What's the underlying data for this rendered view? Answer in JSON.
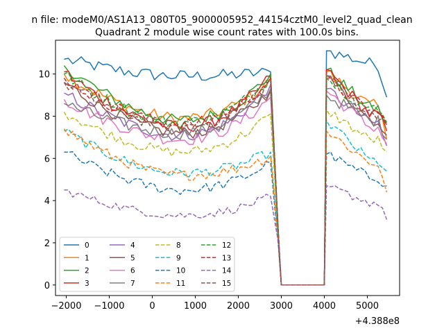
{
  "chart_data": {
    "type": "line",
    "suptitle": "n file: modeM0/AS1A13_080T05_9000005952_44154cztM0_level2_quad_clean",
    "title": "Quadrant 2 module wise count rates with 100.0s bins.",
    "xlabel": "",
    "ylabel": "",
    "x_offset_label": "+4.388e8",
    "xlim": [
      -2250,
      5750
    ],
    "ylim": [
      -0.5,
      11.6
    ],
    "x_ticks": [
      -2000,
      -1000,
      0,
      1000,
      2000,
      3000,
      4000,
      5000
    ],
    "x_tick_labels": [
      "−2000",
      "−1000",
      "0",
      "1000",
      "2000",
      "3000",
      "4000",
      "5000"
    ],
    "y_ticks": [
      0,
      2,
      4,
      6,
      8,
      10
    ],
    "y_tick_labels": [
      "0",
      "2",
      "4",
      "6",
      "8",
      "10"
    ],
    "grid": false,
    "legend_position": "lower-left",
    "legend_columns": 4,
    "x_seg1": {
      "start": -2050,
      "step": 100,
      "count": 49
    },
    "x_gap": [
      3000,
      4000
    ],
    "x_seg2": {
      "start": 4050,
      "step": 100,
      "count": 15
    },
    "series": [
      {
        "name": "0",
        "color": "#1f77b4",
        "dash": "solid",
        "base": 9.9,
        "amp": 0.3,
        "seg1_start": 10.7,
        "seg1_end": 10.1,
        "seg2_start": 11.1,
        "seg2_end": 8.9
      },
      {
        "name": "1",
        "color": "#ff7f0e",
        "dash": "solid",
        "base": 7.9,
        "amp": 0.3,
        "seg1_start": 10.0,
        "seg1_end": 9.7,
        "seg2_start": 10.1,
        "seg2_end": 6.9
      },
      {
        "name": "2",
        "color": "#2ca02c",
        "dash": "solid",
        "base": 7.8,
        "amp": 0.3,
        "seg1_start": 10.4,
        "seg1_end": 10.0,
        "seg2_start": 10.2,
        "seg2_end": 7.6
      },
      {
        "name": "3",
        "color": "#d62728",
        "dash": "solid",
        "base": 7.5,
        "amp": 0.3,
        "seg1_start": 10.1,
        "seg1_end": 9.9,
        "seg2_start": 10.2,
        "seg2_end": 7.3
      },
      {
        "name": "4",
        "color": "#9467bd",
        "dash": "solid",
        "base": 7.1,
        "amp": 0.3,
        "seg1_start": 9.1,
        "seg1_end": 9.5,
        "seg2_start": 9.3,
        "seg2_end": 6.6
      },
      {
        "name": "5",
        "color": "#8c564b",
        "dash": "solid",
        "base": 7.2,
        "amp": 0.3,
        "seg1_start": 9.6,
        "seg1_end": 9.2,
        "seg2_start": 9.9,
        "seg2_end": 7.1
      },
      {
        "name": "6",
        "color": "#e377c2",
        "dash": "solid",
        "base": 6.9,
        "amp": 0.3,
        "seg1_start": 8.8,
        "seg1_end": 8.9,
        "seg2_start": 9.2,
        "seg2_end": 6.7
      },
      {
        "name": "7",
        "color": "#7f7f7f",
        "dash": "solid",
        "base": 7.2,
        "amp": 0.3,
        "seg1_start": 8.6,
        "seg1_end": 9.3,
        "seg2_start": 9.0,
        "seg2_end": 6.9
      },
      {
        "name": "8",
        "color": "#bcbd22",
        "dash": "dashed",
        "base": 6.3,
        "amp": 0.25,
        "seg1_start": 8.2,
        "seg1_end": 8.1,
        "seg2_start": 8.3,
        "seg2_end": 6.3
      },
      {
        "name": "9",
        "color": "#17becf",
        "dash": "dashed",
        "base": 5.3,
        "amp": 0.25,
        "seg1_start": 7.3,
        "seg1_end": 6.3,
        "seg2_start": 7.8,
        "seg2_end": 5.4
      },
      {
        "name": "10",
        "color": "#1f77b4",
        "dash": "dashed",
        "base": 4.5,
        "amp": 0.25,
        "seg1_start": 6.3,
        "seg1_end": 5.8,
        "seg2_start": 6.2,
        "seg2_end": 4.7
      },
      {
        "name": "11",
        "color": "#ff7f0e",
        "dash": "dashed",
        "base": 5.2,
        "amp": 0.25,
        "seg1_start": 7.4,
        "seg1_end": 6.1,
        "seg2_start": 7.3,
        "seg2_end": 4.4
      },
      {
        "name": "12",
        "color": "#2ca02c",
        "dash": "dashed",
        "base": 7.7,
        "amp": 0.3,
        "seg1_start": 10.0,
        "seg1_end": 9.9,
        "seg2_start": 9.8,
        "seg2_end": 7.7
      },
      {
        "name": "13",
        "color": "#d62728",
        "dash": "dashed",
        "base": 7.6,
        "amp": 0.3,
        "seg1_start": 9.8,
        "seg1_end": 9.8,
        "seg2_start": 9.8,
        "seg2_end": 7.6
      },
      {
        "name": "14",
        "color": "#9467bd",
        "dash": "dashed",
        "base": 3.3,
        "amp": 0.2,
        "seg1_start": 4.5,
        "seg1_end": 4.2,
        "seg2_start": 4.7,
        "seg2_end": 3.1
      },
      {
        "name": "15",
        "color": "#8c564b",
        "dash": "dashed",
        "base": 7.5,
        "amp": 0.3,
        "seg1_start": 9.6,
        "seg1_end": 9.7,
        "seg2_start": 10.0,
        "seg2_end": 7.6
      }
    ]
  }
}
